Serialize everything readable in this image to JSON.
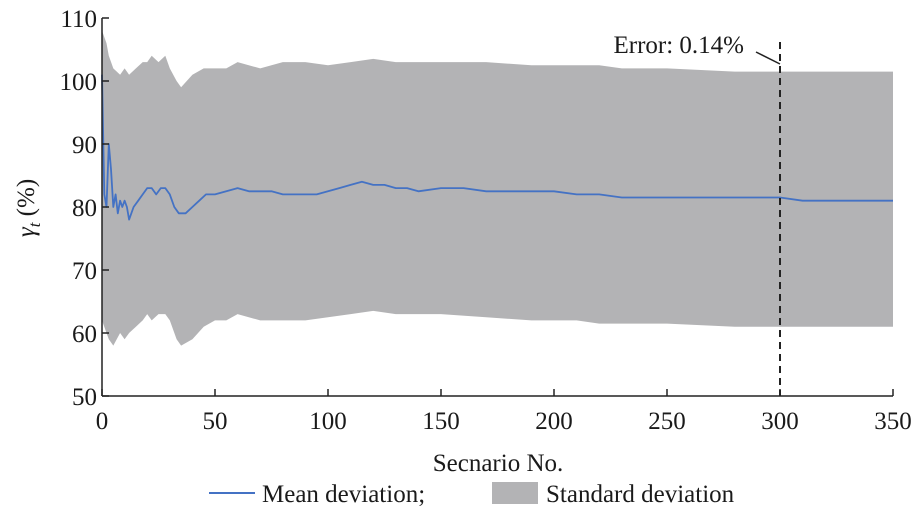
{
  "chart_data": {
    "type": "line",
    "title": "",
    "xlabel": "Secnario No.",
    "ylabel_symbol": "γ",
    "ylabel_subscript": "t",
    "ylabel_unit": " (%)",
    "xlim": [
      0,
      350
    ],
    "ylim": [
      50,
      110
    ],
    "x_ticks": [
      0,
      50,
      100,
      150,
      200,
      250,
      300,
      350
    ],
    "y_ticks": [
      50,
      60,
      70,
      80,
      90,
      100,
      110
    ],
    "x_tick_labels": [
      "0",
      "50",
      "100",
      "150",
      "200",
      "250",
      "300",
      "350"
    ],
    "y_tick_labels": [
      "50",
      "60",
      "70",
      "80",
      "90",
      "100",
      "110"
    ],
    "grid": false,
    "legend_position": "bottom",
    "colors": {
      "mean": "#4472c4",
      "band": "#b3b3b5",
      "marker_line": "#222222"
    },
    "series": [
      {
        "name": "Mean deviation;",
        "kind": "line",
        "x": [
          0,
          1,
          2,
          3,
          4,
          5,
          6,
          7,
          8,
          9,
          10,
          11,
          12,
          14,
          16,
          18,
          20,
          22,
          24,
          26,
          28,
          30,
          32,
          34,
          35,
          37,
          40,
          43,
          46,
          50,
          55,
          60,
          65,
          70,
          75,
          80,
          85,
          90,
          95,
          100,
          105,
          110,
          115,
          120,
          125,
          130,
          135,
          140,
          150,
          160,
          170,
          180,
          190,
          200,
          210,
          220,
          230,
          240,
          250,
          260,
          270,
          280,
          290,
          300,
          310,
          320,
          330,
          340,
          350
        ],
        "values": [
          101,
          82,
          80,
          90,
          86,
          80,
          82,
          79,
          81,
          80,
          81,
          80,
          78,
          80,
          81,
          82,
          83,
          83,
          82,
          83,
          83,
          82,
          80,
          79,
          79,
          79,
          80,
          81,
          82,
          82,
          82.5,
          83,
          82.5,
          82.5,
          82.5,
          82,
          82,
          82,
          82,
          82.5,
          83,
          83.5,
          84,
          83.5,
          83.5,
          83,
          83,
          82.5,
          83,
          83,
          82.5,
          82.5,
          82.5,
          82.5,
          82,
          82,
          81.5,
          81.5,
          81.5,
          81.5,
          81.5,
          81.5,
          81.5,
          81.5,
          81,
          81,
          81,
          81,
          81
        ]
      },
      {
        "name": "Standard deviation",
        "kind": "band",
        "x": [
          0,
          2,
          3,
          5,
          8,
          10,
          12,
          15,
          18,
          20,
          22,
          25,
          28,
          30,
          33,
          35,
          40,
          45,
          50,
          55,
          60,
          70,
          80,
          90,
          100,
          110,
          120,
          130,
          140,
          150,
          170,
          190,
          200,
          210,
          220,
          230,
          250,
          280,
          300,
          320,
          350
        ],
        "upper": [
          108,
          106,
          104,
          102,
          101,
          102,
          101,
          102,
          103,
          103,
          104,
          103,
          104,
          102,
          100,
          99,
          101,
          102,
          102,
          102,
          103,
          102,
          103,
          103,
          102.5,
          103,
          103.5,
          103,
          103,
          103,
          103,
          102.5,
          102.5,
          102.5,
          102.5,
          102,
          102,
          101.5,
          101.5,
          101.5,
          101.5
        ],
        "lower": [
          62,
          60,
          59,
          58,
          60,
          59,
          60,
          61,
          62,
          63,
          62,
          63,
          63,
          62,
          59,
          58,
          59,
          61,
          62,
          62,
          63,
          62,
          62,
          62,
          62.5,
          63,
          63.5,
          63,
          63,
          63,
          62.5,
          62,
          62,
          62,
          61.5,
          61.5,
          61.5,
          61,
          61,
          61,
          61
        ]
      }
    ],
    "annotations": [
      {
        "text": "Error: 0.14%",
        "x": 300,
        "kind": "vertical-dashed-line"
      }
    ]
  }
}
